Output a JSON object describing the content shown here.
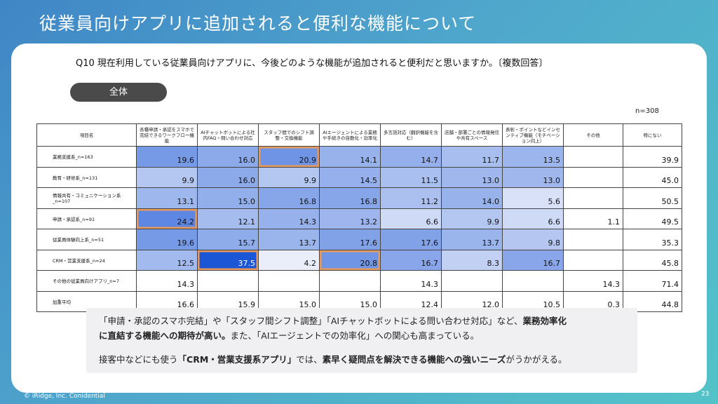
{
  "slide": {
    "title": "従業員向けアプリに追加されると便利な機能について",
    "question": "Q10 現在利用している従業員向けアプリに、今後どのような機能が追加されると便利だと思いますか。〔複数回答〕",
    "segment_pill": "全体",
    "sample_size": "n=308"
  },
  "table": {
    "corner_header": "項目名",
    "columns": [
      "各種申請・承認をスマホで完結できるワークフロー機能",
      "AIチャットボットによる社内FAQ・問い合わせ対応",
      "スタッフ間でのシフト調整・交換機能",
      "AIエージェントによる業務や手続きの自動化・効率化",
      "多言語対応（翻訳機能を含む）",
      "店舗・部署ごとの情報発信や共有スペース",
      "表彰・ポイントなどインセンティブ機能（モチベーション向上）",
      "その他",
      "特にない"
    ],
    "rows": [
      {
        "label": "業務支援系_n=163",
        "values": [
          "19.6",
          "16.0",
          "20.9",
          "14.1",
          "14.7",
          "11.7",
          "13.5",
          "",
          "39.9"
        ]
      },
      {
        "label": "教育・研修系_n=131",
        "values": [
          "9.9",
          "16.0",
          "9.9",
          "14.5",
          "11.5",
          "13.0",
          "13.0",
          "",
          "45.0"
        ]
      },
      {
        "label": "情報共有・コミュニケーション系_n=107",
        "values": [
          "13.1",
          "15.0",
          "16.8",
          "16.8",
          "11.2",
          "14.0",
          "5.6",
          "",
          "50.5"
        ]
      },
      {
        "label": "申請・承認系_n=91",
        "values": [
          "24.2",
          "12.1",
          "14.3",
          "13.2",
          "6.6",
          "9.9",
          "6.6",
          "1.1",
          "49.5"
        ]
      },
      {
        "label": "従業員体験向上系_n=51",
        "values": [
          "19.6",
          "15.7",
          "13.7",
          "17.6",
          "17.6",
          "13.7",
          "9.8",
          "",
          "35.3"
        ]
      },
      {
        "label": "CRM・営業支援系_n=24",
        "values": [
          "12.5",
          "37.5",
          "4.2",
          "20.8",
          "16.7",
          "8.3",
          "16.7",
          "",
          "45.8"
        ]
      },
      {
        "label": "その他の従業員向けアプリ_n=7",
        "values": [
          "14.3",
          "",
          "",
          "",
          "14.3",
          "",
          "",
          "14.3",
          "71.4"
        ]
      },
      {
        "label": "加重平均",
        "values": [
          "16.6",
          "15.9",
          "15.0",
          "15.0",
          "12.4",
          "12.0",
          "10.5",
          "0.3",
          "44.8"
        ]
      }
    ],
    "shade_color_light": "#eef1fb",
    "shade_color_dark": "#1a56d6",
    "highlight_border_color": "#e89a5c"
  },
  "note": {
    "line1_a": "「申請・承認のスマホ完結」や「スタッフ間シフト調整」「AIチャットボットによる問い合わせ対応」など、",
    "line1_b": "業務効率化",
    "line2_a": "に直結する機能への期待が高い。",
    "line2_b": "また、「AIエージェントでの効率化」への関心も高まっている。",
    "line3_a": "接客中などにも使う",
    "line3_b": "「CRM・営業支援系アプリ」",
    "line3_c": "では、",
    "line3_d": "素早く疑問点を解決できる機能への強いニーズ",
    "line3_e": "がうかがえる。"
  },
  "footer": {
    "copyright": "© iRidge, Inc. Conidential",
    "page_number": "23"
  }
}
